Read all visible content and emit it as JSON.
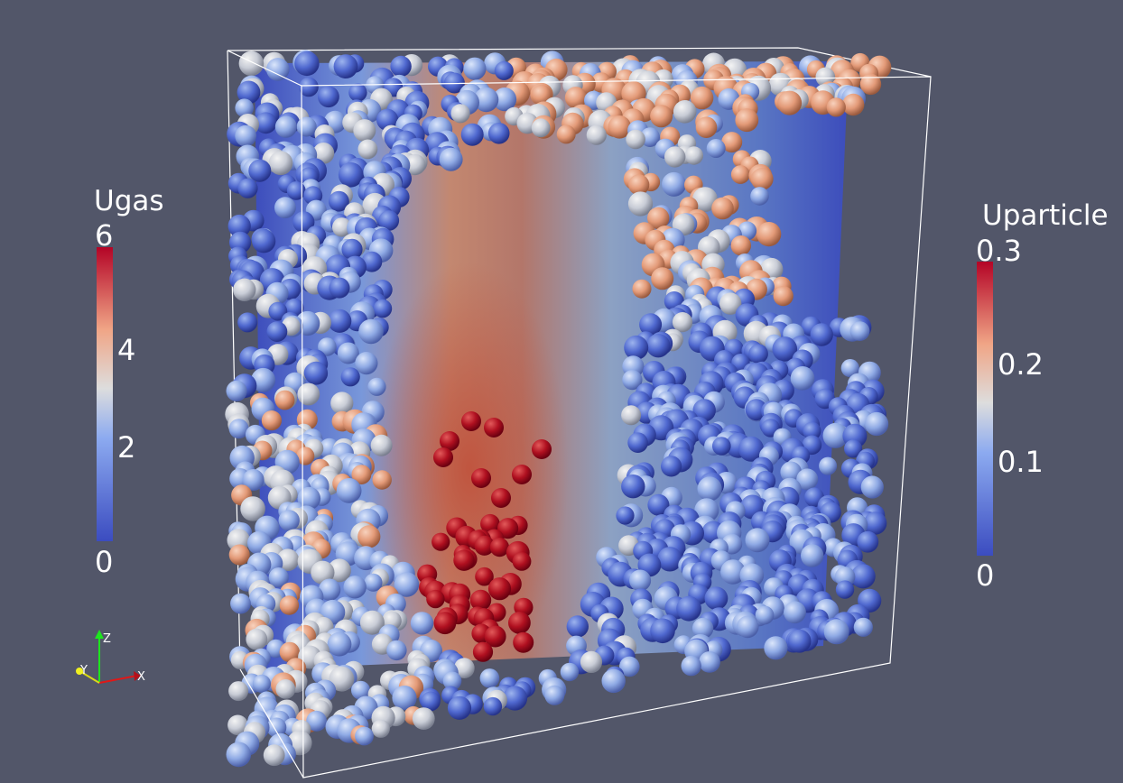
{
  "colors": {
    "background": "#525669",
    "low": "#3b4cc0",
    "mid": "#dddddd",
    "high": "#b40426"
  },
  "legend_ugas": {
    "title": "Ugas",
    "ticks": [
      "6",
      "4",
      "2",
      "0"
    ]
  },
  "legend_uparticle": {
    "title": "Uparticle",
    "ticks": [
      "0.3",
      "0.2",
      "0.1",
      "0"
    ]
  },
  "axes": {
    "z_label": "Z",
    "y_label": "Y",
    "x_label": "X"
  }
}
